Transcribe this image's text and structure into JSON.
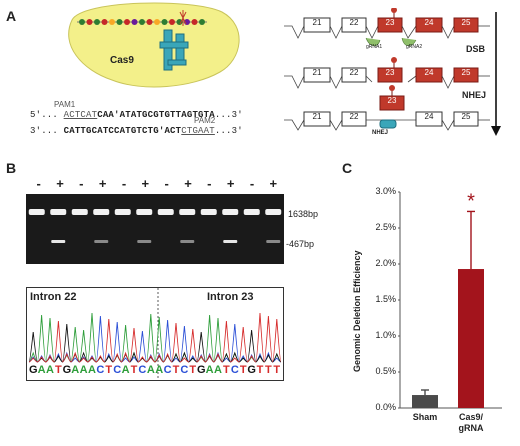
{
  "panels": {
    "a": "A",
    "b": "B",
    "c": "C"
  },
  "panel_a": {
    "cas9_label": "Cas9",
    "pam1": "PAM1",
    "pam2": "PAM2",
    "seq_top_prefix": "5'...",
    "seq_top_pam": "ACTCAT",
    "seq_top_bold": "CAA'ATATGCGTGTTAGTGTA",
    "seq_top_suffix": "...3'",
    "seq_bot_prefix": "3'...",
    "seq_bot_bold": "CATTGCATCCATGTCTG'ACT",
    "seq_bot_pam": "CTGAAT",
    "seq_bot_suffix": "...3'",
    "exons_row1": [
      "21",
      "22",
      "23",
      "24",
      "25"
    ],
    "exons_row2": [
      "21",
      "22",
      "23",
      "24",
      "25"
    ],
    "exons_row3": [
      "21",
      "22",
      "23",
      "24",
      "25"
    ],
    "grna1": "gRNA1",
    "grna2": "gRNA2",
    "dsb": "DSB",
    "nhej": "NHEJ",
    "nhej_bubble": "NHEJ",
    "colors": {
      "exon_target": "#c0392b",
      "exon_plain": "#ffffff",
      "cas9": "#f3f08a",
      "arrow": "#111111"
    }
  },
  "panel_b": {
    "lane_signs": [
      "-",
      "+",
      "-",
      "+",
      "-",
      "+",
      "-",
      "+",
      "-",
      "+",
      "-",
      "+"
    ],
    "band_upper": "1638bp",
    "band_lower": "-467bp",
    "lower_band_lanes": [
      1,
      3,
      5,
      7,
      9,
      11
    ],
    "intron_left": "Intron 22",
    "intron_right": "Intron 23",
    "sequence": "GAATGAAACTCATCAACTCTGAATCTGTTT"
  },
  "panel_c": {
    "chart_data": {
      "type": "bar",
      "categories": [
        "Sham",
        "Cas9/gRNA"
      ],
      "values": [
        0.18,
        1.93
      ],
      "errors": [
        0.07,
        0.8
      ],
      "ylabel": "Genomic Deletion Efficiency",
      "ylim": [
        0,
        3.0
      ],
      "yticks": [
        "0.0%",
        "0.5%",
        "1.0%",
        "1.5%",
        "2.0%",
        "2.5%",
        "3.0%"
      ],
      "ytick_values": [
        0,
        0.5,
        1.0,
        1.5,
        2.0,
        2.5,
        3.0
      ],
      "significance": "*",
      "bar_colors": [
        "#4a4a4a",
        "#a3141c"
      ],
      "category_lines": [
        [
          "Sham"
        ],
        [
          "Cas9/",
          "gRNA"
        ]
      ]
    }
  }
}
